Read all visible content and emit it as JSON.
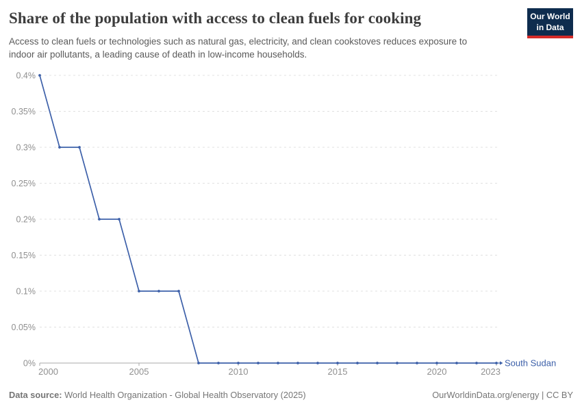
{
  "header": {
    "title": "Share of the population with access to clean fuels for cooking",
    "subtitle": "Access to clean fuels or technologies such as natural gas, electricity, and clean cookstoves reduces exposure to indoor air pollutants, a leading cause of death in low-income households.",
    "logo": {
      "line1": "Our World",
      "line2": "in Data"
    }
  },
  "chart_data": {
    "type": "line",
    "title": "Share of the population with access to clean fuels for cooking",
    "xlabel": "",
    "ylabel": "",
    "xlim": [
      2000,
      2023
    ],
    "ylim": [
      0,
      0.4
    ],
    "grid": "horizontal-dashed",
    "legend_position": "end-of-line-label",
    "x_ticks": [
      2000,
      2005,
      2010,
      2015,
      2020,
      2023
    ],
    "y_ticks": [
      0,
      0.05,
      0.1,
      0.15,
      0.2,
      0.25,
      0.3,
      0.35,
      0.4
    ],
    "y_tick_labels": [
      "0%",
      "0.05%",
      "0.1%",
      "0.15%",
      "0.2%",
      "0.25%",
      "0.3%",
      "0.35%",
      "0.4%"
    ],
    "series": [
      {
        "name": "South Sudan",
        "color": "#3d60a9",
        "x": [
          2000,
          2001,
          2002,
          2003,
          2004,
          2005,
          2006,
          2007,
          2008,
          2009,
          2010,
          2011,
          2012,
          2013,
          2014,
          2015,
          2016,
          2017,
          2018,
          2019,
          2020,
          2021,
          2022,
          2023
        ],
        "values": [
          0.4,
          0.3,
          0.3,
          0.2,
          0.2,
          0.1,
          0.1,
          0.1,
          0,
          0,
          0,
          0,
          0,
          0,
          0,
          0,
          0,
          0,
          0,
          0,
          0,
          0,
          0,
          0
        ]
      }
    ]
  },
  "colors": {
    "line": "#3d60a9",
    "series_label": "#3d60a9",
    "grid": "#e0e0e0",
    "axis": "#a8a8a8",
    "tick_label": "#8f8f8f",
    "title": "#3d3d3d",
    "subtitle": "#5a5a5a",
    "footer": "#757575",
    "logo_bg": "#0e2c4e",
    "logo_accent": "#d42b28"
  },
  "footer": {
    "datasource_label": "Data source:",
    "datasource_text": " World Health Organization - Global Health Observatory (2025)",
    "credit": "OurWorldinData.org/energy | CC BY"
  }
}
